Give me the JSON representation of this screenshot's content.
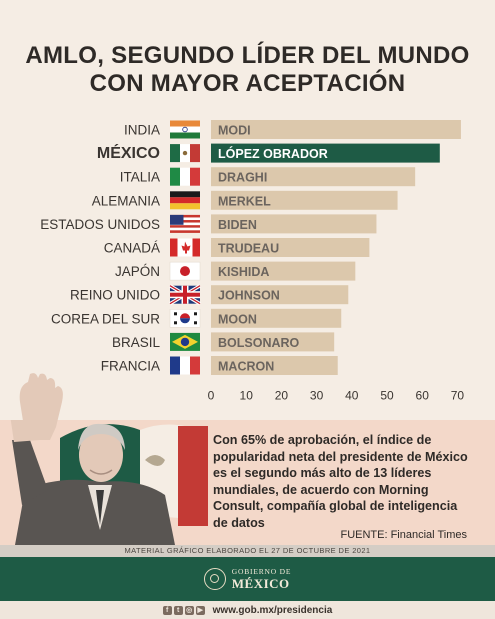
{
  "title_line1": "AMLO, SEGUNDO LÍDER DEL MUNDO",
  "title_line2": "CON MAYOR ACEPTACIÓN",
  "chart_data": {
    "type": "bar",
    "orientation": "horizontal",
    "categories": [
      "INDIA",
      "MÉXICO",
      "ITALIA",
      "ALEMANIA",
      "ESTADOS UNIDOS",
      "CANADÁ",
      "JAPÓN",
      "REINO UNIDO",
      "COREA DEL SUR",
      "BRASIL",
      "FRANCIA"
    ],
    "bar_labels": [
      "MODI",
      "LÓPEZ OBRADOR",
      "DRAGHI",
      "MERKEL",
      "BIDEN",
      "TRUDEAU",
      "KISHIDA",
      "JOHNSON",
      "MOON",
      "BOLSONARO",
      "MACRON"
    ],
    "values": [
      71,
      65,
      58,
      53,
      47,
      45,
      41,
      39,
      37,
      35,
      36
    ],
    "highlight_index": 1,
    "xlim": [
      0,
      72
    ],
    "xticks": [
      0,
      10,
      20,
      30,
      40,
      50,
      60,
      70
    ],
    "colors": {
      "bar": "#dcc8ac",
      "highlight": "#1e5b45",
      "label": "#6b645e",
      "highlight_label": "#ffffff"
    }
  },
  "body_text": "Con 65% de aprobación, el índice de popularidad neta del presidente de México es el segundo más alto de 13 líderes mundiales, de acuerdo con Morning Consult, compañía global de inteligencia de datos",
  "source": "FUENTE: Financial Times",
  "credit": "MATERIAL GRÁFICO ELABORADO EL 27 DE OCTUBRE DE 2021",
  "footer": {
    "small": "GOBIERNO DE",
    "big": "MÉXICO"
  },
  "url": "www.gob.mx/presidencia",
  "social_icons": [
    "facebook-icon",
    "twitter-icon",
    "instagram-icon",
    "youtube-icon"
  ],
  "colors": {
    "background": "#f5ede4",
    "green": "#1e5b45",
    "pink_panel": "#f3d8c9"
  }
}
